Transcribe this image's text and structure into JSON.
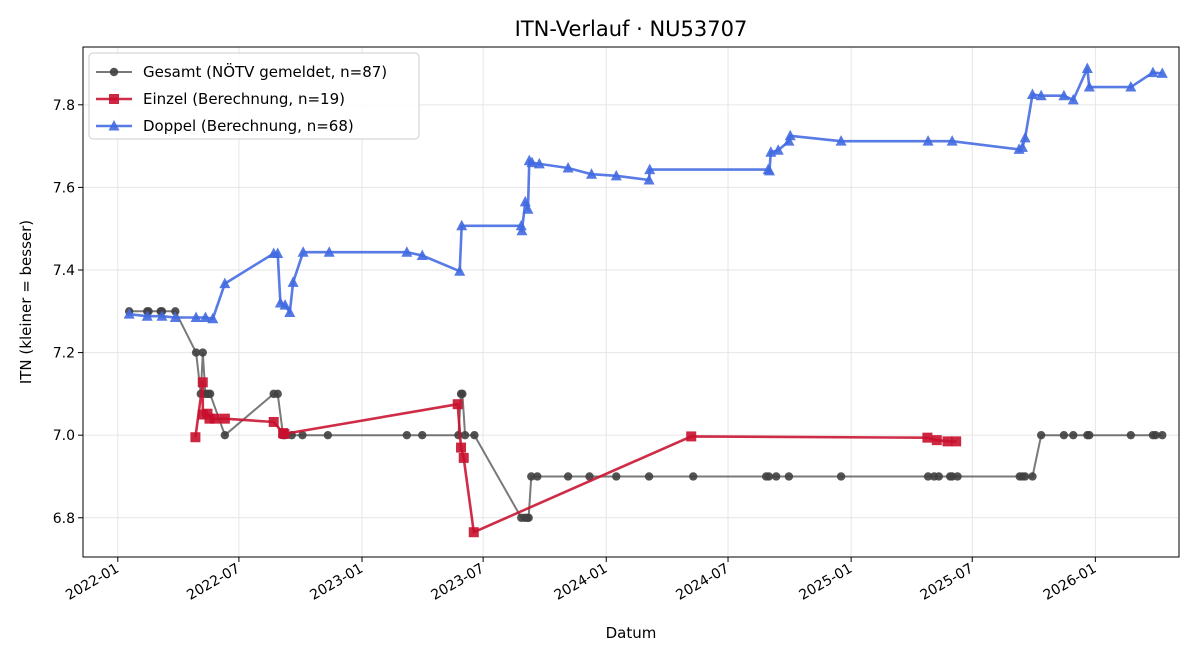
{
  "chart_data": {
    "type": "line",
    "title": "ITN-Verlauf · NU53707",
    "xlabel": "Datum",
    "ylabel": "ITN  (kleiner = besser)",
    "xlim": [
      "2021-11-10",
      "2026-05-06"
    ],
    "ylim": [
      6.705,
      7.94
    ],
    "yticks": [
      6.8,
      7.0,
      7.2,
      7.4,
      7.6,
      7.8
    ],
    "xticks": [
      "2022-01",
      "2022-07",
      "2023-01",
      "2023-07",
      "2024-01",
      "2024-07",
      "2025-01",
      "2025-07",
      "2026-01"
    ],
    "grid": true,
    "legend_position": "top-left",
    "series": [
      {
        "name": "Gesamt (NÖTV gemeldet, n=87)",
        "color": "#404040",
        "marker": "circle",
        "points": [
          [
            "2022-01-18",
            7.3
          ],
          [
            "2022-02-14",
            7.3
          ],
          [
            "2022-02-16",
            7.3
          ],
          [
            "2022-03-06",
            7.3
          ],
          [
            "2022-03-08",
            7.3
          ],
          [
            "2022-03-28",
            7.3
          ],
          [
            "2022-04-28",
            7.2
          ],
          [
            "2022-05-05",
            7.1
          ],
          [
            "2022-05-08",
            7.2
          ],
          [
            "2022-05-12",
            7.1
          ],
          [
            "2022-05-16",
            7.1
          ],
          [
            "2022-05-19",
            7.1
          ],
          [
            "2022-06-10",
            7.0
          ],
          [
            "2022-08-22",
            7.1
          ],
          [
            "2022-08-28",
            7.1
          ],
          [
            "2022-09-05",
            7.0
          ],
          [
            "2022-09-08",
            7.0
          ],
          [
            "2022-09-18",
            7.0
          ],
          [
            "2022-10-04",
            7.0
          ],
          [
            "2022-11-11",
            7.0
          ],
          [
            "2023-03-09",
            7.0
          ],
          [
            "2023-04-01",
            7.0
          ],
          [
            "2023-05-25",
            7.0
          ],
          [
            "2023-05-29",
            7.1
          ],
          [
            "2023-05-31",
            7.1
          ],
          [
            "2023-06-04",
            7.0
          ],
          [
            "2023-06-18",
            7.0
          ],
          [
            "2023-08-27",
            6.8
          ],
          [
            "2023-09-01",
            6.8
          ],
          [
            "2023-09-05",
            6.8
          ],
          [
            "2023-09-07",
            6.8
          ],
          [
            "2023-09-11",
            6.9
          ],
          [
            "2023-09-20",
            6.9
          ],
          [
            "2023-11-05",
            6.9
          ],
          [
            "2023-12-07",
            6.9
          ],
          [
            "2024-01-16",
            6.9
          ],
          [
            "2024-03-05",
            6.9
          ],
          [
            "2024-05-10",
            6.9
          ],
          [
            "2024-08-27",
            6.9
          ],
          [
            "2024-08-31",
            6.9
          ],
          [
            "2024-09-11",
            6.9
          ],
          [
            "2024-09-30",
            6.9
          ],
          [
            "2024-12-17",
            6.9
          ],
          [
            "2025-04-26",
            6.9
          ],
          [
            "2025-05-05",
            6.9
          ],
          [
            "2025-05-12",
            6.9
          ],
          [
            "2025-05-29",
            6.9
          ],
          [
            "2025-06-01",
            6.9
          ],
          [
            "2025-06-09",
            6.9
          ],
          [
            "2025-09-10",
            6.9
          ],
          [
            "2025-09-14",
            6.9
          ],
          [
            "2025-09-18",
            6.9
          ],
          [
            "2025-09-29",
            6.9
          ],
          [
            "2025-10-12",
            7.0
          ],
          [
            "2025-11-15",
            7.0
          ],
          [
            "2025-11-29",
            7.0
          ],
          [
            "2025-12-20",
            7.0
          ],
          [
            "2025-12-23",
            7.0
          ],
          [
            "2026-02-23",
            7.0
          ],
          [
            "2026-03-28",
            7.0
          ],
          [
            "2026-04-01",
            7.0
          ],
          [
            "2026-04-11",
            7.0
          ]
        ]
      },
      {
        "name": "Einzel (Berechnung, n=19)",
        "color": "#c8102e",
        "marker": "square",
        "points": [
          [
            "2022-04-27",
            6.995
          ],
          [
            "2022-05-08",
            7.128
          ],
          [
            "2022-05-08",
            7.05
          ],
          [
            "2022-05-15",
            7.052
          ],
          [
            "2022-05-18",
            7.04
          ],
          [
            "2022-05-26",
            7.04
          ],
          [
            "2022-06-10",
            7.04
          ],
          [
            "2022-08-22",
            7.032
          ],
          [
            "2022-09-05",
            7.005
          ],
          [
            "2022-09-07",
            7.003
          ],
          [
            "2023-05-24",
            7.075
          ],
          [
            "2023-05-29",
            6.97
          ],
          [
            "2023-06-02",
            6.945
          ],
          [
            "2023-06-17",
            6.765
          ],
          [
            "2024-05-07",
            6.997
          ],
          [
            "2025-04-25",
            6.994
          ],
          [
            "2025-05-09",
            6.988
          ],
          [
            "2025-05-25",
            6.985
          ],
          [
            "2025-06-07",
            6.985
          ]
        ]
      },
      {
        "name": "Doppel (Berechnung, n=68)",
        "color": "#4169e1",
        "marker": "triangle",
        "points": [
          [
            "2022-01-18",
            7.293
          ],
          [
            "2022-02-14",
            7.288
          ],
          [
            "2022-03-08",
            7.288
          ],
          [
            "2022-03-28",
            7.285
          ],
          [
            "2022-04-28",
            7.285
          ],
          [
            "2022-05-12",
            7.285
          ],
          [
            "2022-05-23",
            7.282
          ],
          [
            "2022-06-10",
            7.367
          ],
          [
            "2022-08-22",
            7.44
          ],
          [
            "2022-08-28",
            7.44
          ],
          [
            "2022-09-01",
            7.32
          ],
          [
            "2022-09-08",
            7.315
          ],
          [
            "2022-09-15",
            7.297
          ],
          [
            "2022-09-20",
            7.37
          ],
          [
            "2022-10-05",
            7.443
          ],
          [
            "2022-11-13",
            7.443
          ],
          [
            "2023-03-09",
            7.443
          ],
          [
            "2023-04-01",
            7.435
          ],
          [
            "2023-05-27",
            7.397
          ],
          [
            "2023-05-30",
            7.507
          ],
          [
            "2023-08-27",
            7.507
          ],
          [
            "2023-08-28",
            7.495
          ],
          [
            "2023-09-02",
            7.565
          ],
          [
            "2023-09-06",
            7.547
          ],
          [
            "2023-09-08",
            7.665
          ],
          [
            "2023-09-12",
            7.66
          ],
          [
            "2023-09-23",
            7.657
          ],
          [
            "2023-11-05",
            7.647
          ],
          [
            "2023-12-10",
            7.632
          ],
          [
            "2024-01-16",
            7.628
          ],
          [
            "2024-03-05",
            7.618
          ],
          [
            "2024-03-06",
            7.643
          ],
          [
            "2024-08-30",
            7.643
          ],
          [
            "2024-09-01",
            7.64
          ],
          [
            "2024-09-03",
            7.685
          ],
          [
            "2024-09-14",
            7.69
          ],
          [
            "2024-09-30",
            7.712
          ],
          [
            "2024-10-02",
            7.725
          ],
          [
            "2024-12-17",
            7.712
          ],
          [
            "2025-04-26",
            7.712
          ],
          [
            "2025-06-01",
            7.712
          ],
          [
            "2025-09-09",
            7.692
          ],
          [
            "2025-09-14",
            7.697
          ],
          [
            "2025-09-18",
            7.72
          ],
          [
            "2025-09-29",
            7.825
          ],
          [
            "2025-10-12",
            7.822
          ],
          [
            "2025-11-15",
            7.822
          ],
          [
            "2025-11-29",
            7.812
          ],
          [
            "2025-12-20",
            7.888
          ],
          [
            "2025-12-23",
            7.843
          ],
          [
            "2026-02-23",
            7.843
          ],
          [
            "2026-03-28",
            7.878
          ],
          [
            "2026-04-11",
            7.876
          ]
        ]
      }
    ]
  }
}
